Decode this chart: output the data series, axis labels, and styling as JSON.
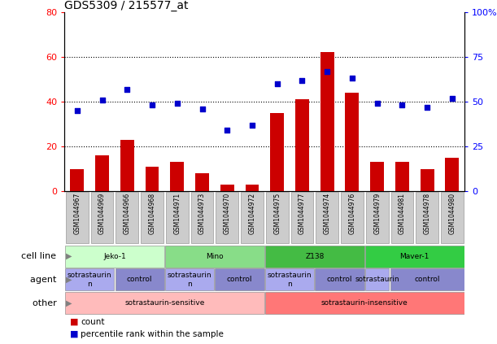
{
  "title": "GDS5309 / 215577_at",
  "samples": [
    "GSM1044967",
    "GSM1044969",
    "GSM1044966",
    "GSM1044968",
    "GSM1044971",
    "GSM1044973",
    "GSM1044970",
    "GSM1044972",
    "GSM1044975",
    "GSM1044977",
    "GSM1044974",
    "GSM1044976",
    "GSM1044979",
    "GSM1044981",
    "GSM1044978",
    "GSM1044980"
  ],
  "counts": [
    10,
    16,
    23,
    11,
    13,
    8,
    3,
    3,
    35,
    41,
    62,
    44,
    13,
    13,
    10,
    15
  ],
  "percentiles": [
    45,
    51,
    57,
    48,
    49,
    46,
    34,
    37,
    60,
    62,
    67,
    63,
    49,
    48,
    47,
    52
  ],
  "ylim_left": [
    0,
    80
  ],
  "ylim_right": [
    0,
    100
  ],
  "yticks_left": [
    0,
    20,
    40,
    60,
    80
  ],
  "yticks_right": [
    0,
    25,
    50,
    75,
    100
  ],
  "bar_color": "#cc0000",
  "dot_color": "#0000cc",
  "cell_lines": [
    {
      "label": "Jeko-1",
      "start": 0,
      "end": 4,
      "color": "#ccffcc"
    },
    {
      "label": "Mino",
      "start": 4,
      "end": 8,
      "color": "#88dd88"
    },
    {
      "label": "Z138",
      "start": 8,
      "end": 12,
      "color": "#44bb44"
    },
    {
      "label": "Maver-1",
      "start": 12,
      "end": 16,
      "color": "#33cc44"
    }
  ],
  "agents": [
    {
      "label": "sotrastaurin\nn",
      "start": 0,
      "end": 2,
      "color": "#aaaaee"
    },
    {
      "label": "control",
      "start": 2,
      "end": 4,
      "color": "#8888cc"
    },
    {
      "label": "sotrastaurin\nn",
      "start": 4,
      "end": 6,
      "color": "#aaaaee"
    },
    {
      "label": "control",
      "start": 6,
      "end": 8,
      "color": "#8888cc"
    },
    {
      "label": "sotrastaurin\nn",
      "start": 8,
      "end": 10,
      "color": "#aaaaee"
    },
    {
      "label": "control",
      "start": 10,
      "end": 12,
      "color": "#8888cc"
    },
    {
      "label": "sotrastaurin",
      "start": 12,
      "end": 13,
      "color": "#aaaaee"
    },
    {
      "label": "control",
      "start": 13,
      "end": 16,
      "color": "#8888cc"
    }
  ],
  "others": [
    {
      "label": "sotrastaurin-sensitive",
      "start": 0,
      "end": 8,
      "color": "#ffbbbb"
    },
    {
      "label": "sotrastaurin-insensitive",
      "start": 8,
      "end": 16,
      "color": "#ff7777"
    }
  ],
  "sample_box_color": "#cccccc",
  "sample_box_edge": "#999999"
}
